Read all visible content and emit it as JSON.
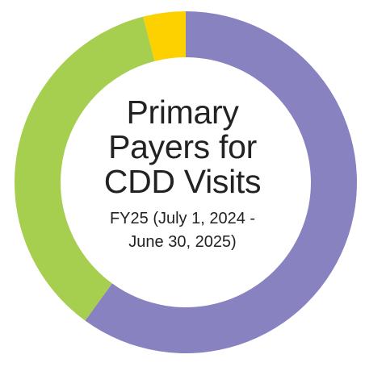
{
  "chart_data": {
    "type": "pie",
    "donut": true,
    "title_lines": [
      "Primary",
      "Payers for",
      "CDD Visits"
    ],
    "subtitle_lines": [
      "FY25 (July 1, 2024 -",
      "June 30, 2025)"
    ],
    "slices": [
      {
        "value": 60,
        "color": "#8882c0"
      },
      {
        "value": 36,
        "color": "#a6ce4f"
      },
      {
        "value": 4,
        "color": "#fdd100"
      }
    ],
    "start_angle_deg": 0,
    "direction": "clockwise",
    "legend": "none"
  }
}
